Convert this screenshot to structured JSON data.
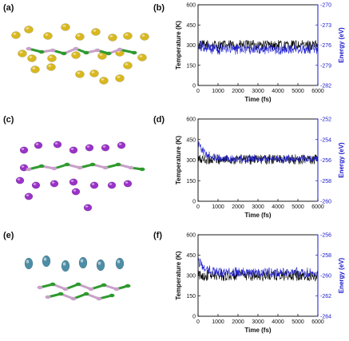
{
  "panel_labels": [
    "(a)",
    "(b)",
    "(c)",
    "(d)",
    "(e)",
    "(f)"
  ],
  "colors": {
    "temperature": "#000000",
    "energy": "#1f1fcf",
    "right_axis": "#1a1acc",
    "atom_yellow": "#d9b81f",
    "atom_purple": "#9a32c8",
    "atom_teal": "#4d8ea6",
    "atom_pink": "#c8a0c8",
    "atom_green": "#2e9a2e"
  },
  "structures": [
    {
      "panel": "(a)",
      "adatom": "yellow"
    },
    {
      "panel": "(c)",
      "adatom": "purple"
    },
    {
      "panel": "(e)",
      "adatom": "teal"
    }
  ],
  "chart_data": [
    {
      "panel": "(b)",
      "type": "line",
      "xlabel": "Time (fs)",
      "ylabel": "Temperature (K)",
      "y2label": "Energy (eV)",
      "xlim": [
        0,
        6000
      ],
      "xticks": [
        0,
        1000,
        2000,
        3000,
        4000,
        5000,
        6000
      ],
      "ylim": [
        0,
        600
      ],
      "yticks": [
        0,
        150,
        300,
        450,
        600
      ],
      "y2lim": [
        -282,
        -270
      ],
      "y2ticks": [
        -282,
        -279,
        -276,
        -273,
        -270
      ],
      "series": [
        {
          "name": "",
          "axis": "left",
          "mean": 300,
          "amplitude": 38,
          "color": "#000000"
        },
        {
          "name": "",
          "axis": "right",
          "mean": -276.6,
          "amplitude": 0.9,
          "start": -276.0,
          "color": "#1f1fcf"
        }
      ]
    },
    {
      "panel": "(d)",
      "type": "line",
      "xlabel": "Time (fs)",
      "ylabel": "Temperature (K)",
      "y2label": "Energy (eV)",
      "xlim": [
        0,
        6000
      ],
      "xticks": [
        0,
        1000,
        2000,
        3000,
        4000,
        5000,
        6000
      ],
      "ylim": [
        0,
        600
      ],
      "yticks": [
        0,
        150,
        300,
        450,
        600
      ],
      "y2lim": [
        -260,
        -252
      ],
      "y2ticks": [
        -260,
        -258,
        -256,
        -254,
        -252
      ],
      "series": [
        {
          "name": "",
          "axis": "left",
          "mean": 305,
          "amplitude": 38,
          "color": "#000000"
        },
        {
          "name": "",
          "axis": "right",
          "mean": -255.9,
          "amplitude": 0.45,
          "start": -254.3,
          "color": "#1f1fcf"
        }
      ]
    },
    {
      "panel": "(f)",
      "type": "line",
      "xlabel": "Time (fs)",
      "ylabel": "Temperature (K)",
      "y2label": "Energy (eV)",
      "xlim": [
        0,
        6000
      ],
      "xticks": [
        0,
        1000,
        2000,
        3000,
        4000,
        5000,
        6000
      ],
      "ylim": [
        0,
        600
      ],
      "yticks": [
        0,
        150,
        300,
        450,
        600
      ],
      "y2lim": [
        -264,
        -256
      ],
      "y2ticks": [
        -264,
        -262,
        -260,
        -258,
        -256
      ],
      "series": [
        {
          "name": "",
          "axis": "left",
          "mean": 300,
          "amplitude": 40,
          "color": "#000000"
        },
        {
          "name": "",
          "axis": "right",
          "mean": -259.7,
          "amplitude": 0.55,
          "start": -258.5,
          "color": "#1f1fcf"
        }
      ]
    }
  ]
}
